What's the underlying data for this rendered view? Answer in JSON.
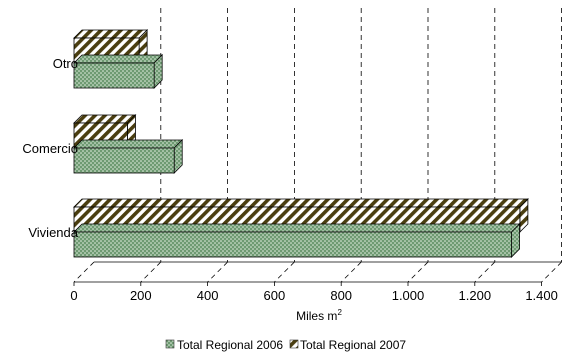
{
  "chart_data": {
    "type": "bar",
    "orientation": "horizontal",
    "style": "3d",
    "categories": [
      "Vivienda",
      "Comercio",
      "Otro"
    ],
    "series": [
      {
        "name": "Total Regional 2006",
        "values": [
          1310,
          300,
          240
        ],
        "color": "#6e9a72",
        "pattern": "dots"
      },
      {
        "name": "Total Regional 2007",
        "values": [
          1335,
          160,
          195
        ],
        "color": "#4a3e10",
        "pattern": "diagonal-stripes"
      }
    ],
    "xlabel": "Miles m",
    "xlabel_superscript": "2",
    "xlim": [
      0,
      1400
    ],
    "xticks": [
      0,
      200,
      400,
      600,
      800,
      1000,
      1200,
      1400
    ],
    "xtick_labels": [
      "0",
      "200",
      "400",
      "600",
      "800",
      "1.000",
      "1.200",
      "1.400"
    ],
    "grid": "vertical-dashed",
    "legend_position": "bottom"
  }
}
